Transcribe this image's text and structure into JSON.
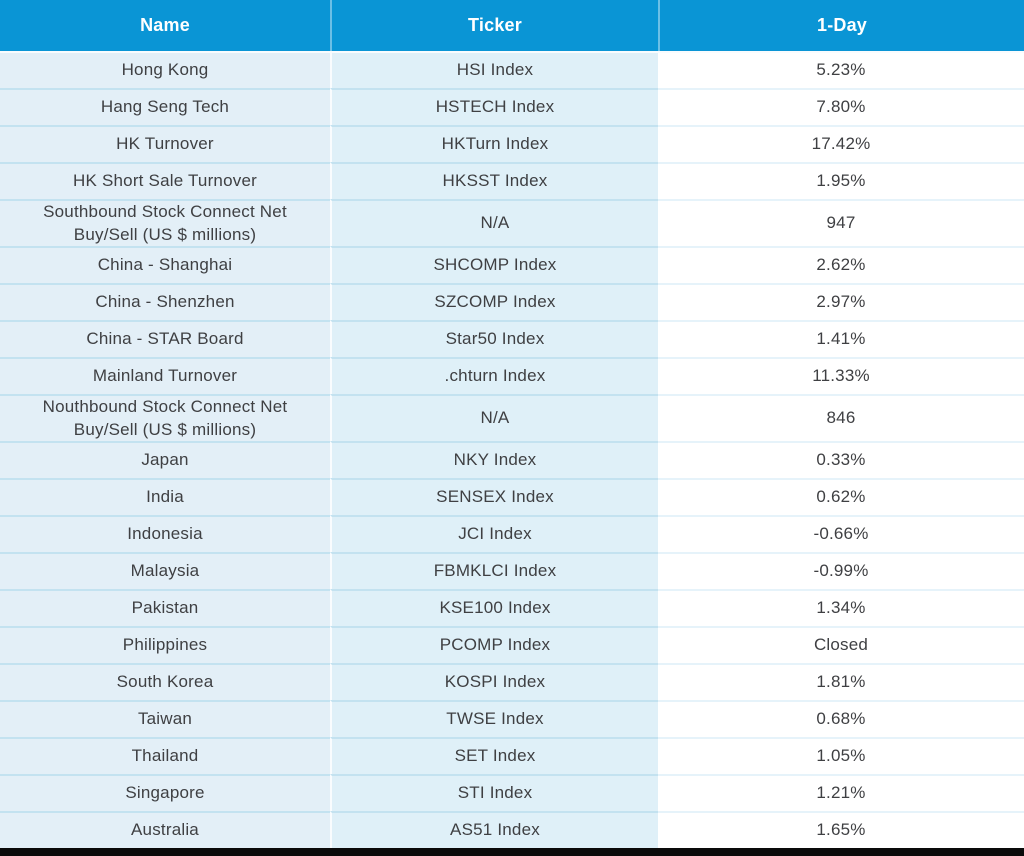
{
  "colors": {
    "header_bg": "#0a95d5",
    "header_text": "#ffffff",
    "name_column_bg": "#e3eff7",
    "ticker_column_bg": "#dff0f8",
    "value_column_bg": "#ffffff",
    "row_separator_blue": "#c3e2f0",
    "row_separator_light": "#e6f3fa",
    "cell_text": "#3f4043",
    "bottom_bar": "#0a0a0a"
  },
  "chart_data": {
    "type": "table",
    "columns": [
      "Name",
      "Ticker",
      "1-Day"
    ],
    "rows": [
      [
        "Hong Kong",
        "HSI Index",
        "5.23%"
      ],
      [
        "Hang Seng Tech",
        "HSTECH Index",
        "7.80%"
      ],
      [
        "HK Turnover",
        "HKTurn Index",
        "17.42%"
      ],
      [
        "HK Short Sale Turnover",
        "HKSST Index",
        "1.95%"
      ],
      [
        "Southbound Stock Connect Net Buy/Sell (US $ millions)",
        "N/A",
        "947"
      ],
      [
        "China - Shanghai",
        "SHCOMP Index",
        "2.62%"
      ],
      [
        "China - Shenzhen",
        "SZCOMP Index",
        "2.97%"
      ],
      [
        "China - STAR Board",
        "Star50 Index",
        "1.41%"
      ],
      [
        "Mainland Turnover",
        ".chturn Index",
        "11.33%"
      ],
      [
        "Nouthbound Stock Connect Net Buy/Sell (US $ millions)",
        "N/A",
        "846"
      ],
      [
        "Japan",
        "NKY Index",
        "0.33%"
      ],
      [
        "India",
        "SENSEX Index",
        "0.62%"
      ],
      [
        "Indonesia",
        "JCI Index",
        "-0.66%"
      ],
      [
        "Malaysia",
        "FBMKLCI Index",
        "-0.99%"
      ],
      [
        "Pakistan",
        "KSE100 Index",
        "1.34%"
      ],
      [
        "Philippines",
        "PCOMP Index",
        "Closed"
      ],
      [
        "South Korea",
        "KOSPI Index",
        "1.81%"
      ],
      [
        "Taiwan",
        "TWSE Index",
        "0.68%"
      ],
      [
        "Thailand",
        "SET Index",
        "1.05%"
      ],
      [
        "Singapore",
        "STI Index",
        "1.21%"
      ],
      [
        "Australia",
        "AS51 Index",
        "1.65%"
      ]
    ]
  }
}
